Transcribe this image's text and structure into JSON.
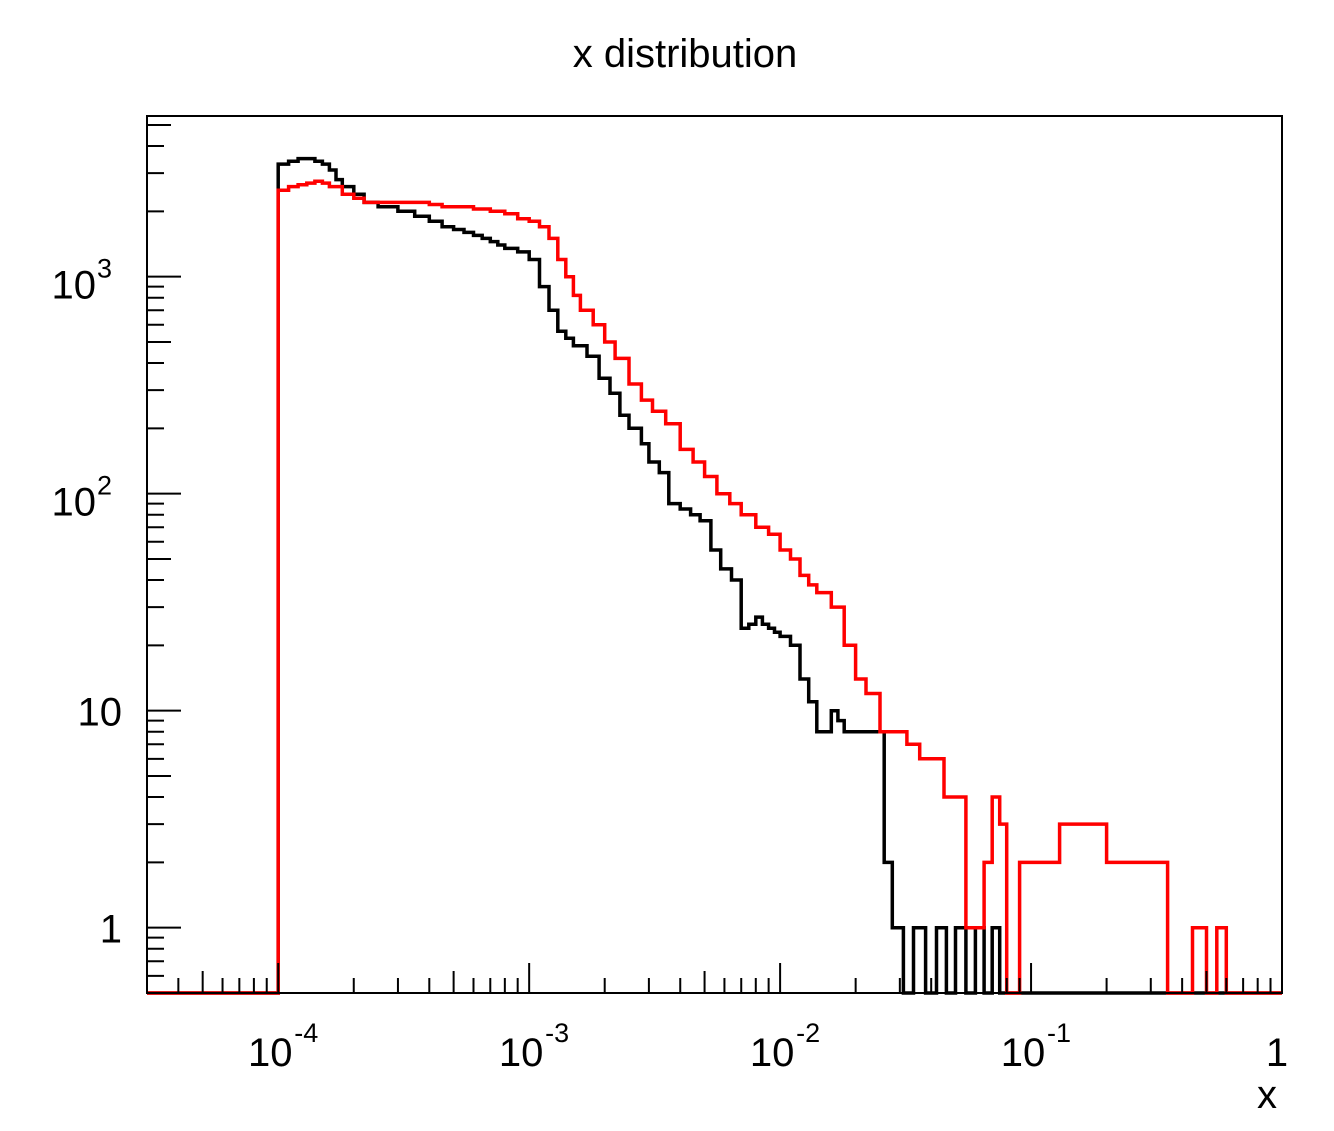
{
  "chart_data": {
    "type": "line",
    "step": true,
    "title": "x distribution",
    "xlabel": "x",
    "ylabel": "",
    "xscale": "log",
    "yscale": "log",
    "xlim": [
      3e-05,
      1
    ],
    "ylim": [
      0.5,
      5500
    ],
    "grid": false,
    "legend": "none",
    "x_ticks": [
      {
        "value": 0.0001,
        "base": "10",
        "exp": "-4"
      },
      {
        "value": 0.001,
        "base": "10",
        "exp": "-3"
      },
      {
        "value": 0.01,
        "base": "10",
        "exp": "-2"
      },
      {
        "value": 0.1,
        "base": "10",
        "exp": "-1"
      },
      {
        "value": 1,
        "base": "1",
        "exp": ""
      }
    ],
    "y_ticks": [
      {
        "value": 1,
        "base": "1",
        "exp": ""
      },
      {
        "value": 10,
        "base": "10",
        "exp": ""
      },
      {
        "value": 100,
        "base": "10",
        "exp": "2"
      },
      {
        "value": 1000,
        "base": "10",
        "exp": "3"
      }
    ],
    "series": [
      {
        "color": "#000000",
        "x": [
          0.0001,
          0.00011,
          0.00012,
          0.00013,
          0.00014,
          0.00015,
          0.00016,
          0.00017,
          0.00018,
          0.0002,
          0.00022,
          0.00025,
          0.0003,
          0.00035,
          0.0004,
          0.00045,
          0.0005,
          0.00055,
          0.0006,
          0.00065,
          0.0007,
          0.00075,
          0.0008,
          0.00085,
          0.0009,
          0.001,
          0.0011,
          0.0012,
          0.0013,
          0.0014,
          0.0015,
          0.0017,
          0.0019,
          0.0021,
          0.0023,
          0.0025,
          0.0028,
          0.003,
          0.0033,
          0.0036,
          0.004,
          0.0044,
          0.0048,
          0.0053,
          0.0058,
          0.0064,
          0.007,
          0.0075,
          0.008,
          0.0085,
          0.009,
          0.0095,
          0.01,
          0.011,
          0.012,
          0.013,
          0.014,
          0.015,
          0.016,
          0.017,
          0.018,
          0.019,
          0.02,
          0.021,
          0.022,
          0.023,
          0.024,
          0.026,
          0.028,
          0.031,
          0.034,
          0.038,
          0.042,
          0.046,
          0.05,
          0.055,
          0.06,
          0.065,
          0.07,
          0.075,
          0.08,
          0.09,
          0.1,
          0.4
        ],
        "y": [
          3300,
          3400,
          3500,
          3500,
          3400,
          3300,
          3100,
          2800,
          2600,
          2400,
          2200,
          2100,
          2000,
          1900,
          1800,
          1700,
          1650,
          1600,
          1550,
          1500,
          1450,
          1400,
          1350,
          1350,
          1300,
          1200,
          900,
          700,
          560,
          520,
          480,
          430,
          340,
          290,
          230,
          200,
          170,
          140,
          125,
          90,
          85,
          80,
          75,
          55,
          45,
          40,
          24,
          25,
          27,
          25,
          24,
          23,
          22,
          20,
          14,
          11,
          8,
          8,
          10,
          9,
          8,
          8,
          8,
          8,
          8,
          8,
          8,
          2,
          1,
          0.5,
          1,
          0.5,
          1,
          0.5,
          1,
          0.5,
          1,
          0.5,
          1,
          0.5,
          0.5,
          0.5,
          0.5,
          0.5
        ]
      },
      {
        "color": "#ff0000",
        "x": [
          0.0001,
          0.00011,
          0.00012,
          0.00013,
          0.00014,
          0.00015,
          0.00016,
          0.00018,
          0.0002,
          0.00022,
          0.00025,
          0.0003,
          0.00035,
          0.0004,
          0.00045,
          0.0005,
          0.0006,
          0.0007,
          0.0008,
          0.0009,
          0.001,
          0.0011,
          0.0012,
          0.0013,
          0.0014,
          0.0015,
          0.0016,
          0.0018,
          0.002,
          0.0022,
          0.0025,
          0.0028,
          0.0031,
          0.0035,
          0.004,
          0.0045,
          0.005,
          0.0056,
          0.0063,
          0.007,
          0.008,
          0.009,
          0.01,
          0.011,
          0.012,
          0.013,
          0.014,
          0.016,
          0.018,
          0.02,
          0.022,
          0.025,
          0.028,
          0.032,
          0.036,
          0.04,
          0.045,
          0.05,
          0.055,
          0.06,
          0.065,
          0.07,
          0.075,
          0.08,
          0.09,
          0.1,
          0.13,
          0.16,
          0.2,
          0.23,
          0.25,
          0.28,
          0.3,
          0.35,
          0.4,
          0.44,
          0.5,
          0.55,
          0.6,
          0.7,
          0.8
        ],
        "y": [
          2500,
          2600,
          2650,
          2700,
          2750,
          2700,
          2600,
          2400,
          2300,
          2200,
          2200,
          2200,
          2200,
          2150,
          2100,
          2100,
          2050,
          2000,
          1950,
          1850,
          1800,
          1700,
          1500,
          1200,
          1000,
          820,
          700,
          600,
          500,
          420,
          320,
          270,
          240,
          210,
          160,
          140,
          120,
          100,
          90,
          80,
          70,
          65,
          55,
          50,
          42,
          38,
          35,
          30,
          20,
          14,
          12,
          8,
          8,
          7,
          6,
          6,
          4,
          4,
          1,
          1,
          2,
          4,
          3,
          0.5,
          2,
          2,
          3,
          3,
          2,
          2,
          2,
          2,
          2,
          0.5,
          0.5,
          1,
          0.5,
          1,
          0.5,
          0.5,
          0.5
        ]
      }
    ]
  }
}
